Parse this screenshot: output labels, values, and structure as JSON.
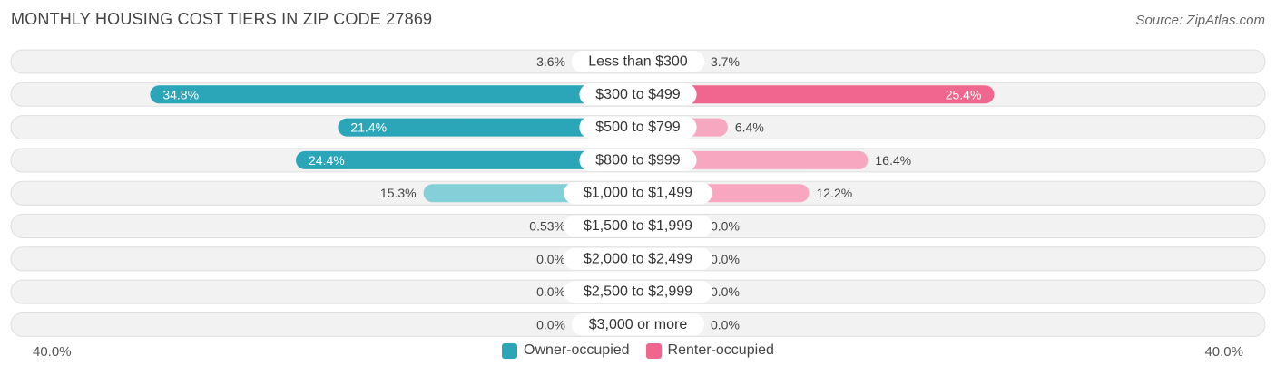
{
  "header": {
    "title": "MONTHLY HOUSING COST TIERS IN ZIP CODE 27869",
    "source": "Source: ZipAtlas.com"
  },
  "axis": {
    "left_label": "40.0%",
    "right_label": "40.0%"
  },
  "legend": [
    {
      "name": "Owner-occupied",
      "color": "#2ba6b8"
    },
    {
      "name": "Renter-occupied",
      "color": "#f0668f"
    }
  ],
  "chart_data": {
    "type": "bar",
    "orientation": "horizontal-diverging",
    "title": "MONTHLY HOUSING COST TIERS IN ZIP CODE 27869",
    "xlim": [
      -40,
      40
    ],
    "categories": [
      "Less than $300",
      "$300 to $499",
      "$500 to $799",
      "$800 to $999",
      "$1,000 to $1,499",
      "$1,500 to $1,999",
      "$2,000 to $2,499",
      "$2,500 to $2,999",
      "$3,000 or more"
    ],
    "series": [
      {
        "name": "Owner-occupied",
        "side": "left",
        "values": [
          3.6,
          34.8,
          21.4,
          24.4,
          15.3,
          0.53,
          0.0,
          0.0,
          0.0
        ],
        "labels": [
          "3.6%",
          "34.8%",
          "21.4%",
          "24.4%",
          "15.3%",
          "0.53%",
          "0.0%",
          "0.0%",
          "0.0%"
        ],
        "color": "#2ba6b8",
        "light_color": "#84cfd8"
      },
      {
        "name": "Renter-occupied",
        "side": "right",
        "values": [
          3.7,
          25.4,
          6.4,
          16.4,
          12.2,
          0.0,
          0.0,
          0.0,
          0.0
        ],
        "labels": [
          "3.7%",
          "25.4%",
          "6.4%",
          "16.4%",
          "12.2%",
          "0.0%",
          "0.0%",
          "0.0%",
          "0.0%"
        ],
        "color": "#f0668f",
        "light_color": "#f7a8c0"
      }
    ],
    "legend_position": "bottom-center"
  }
}
